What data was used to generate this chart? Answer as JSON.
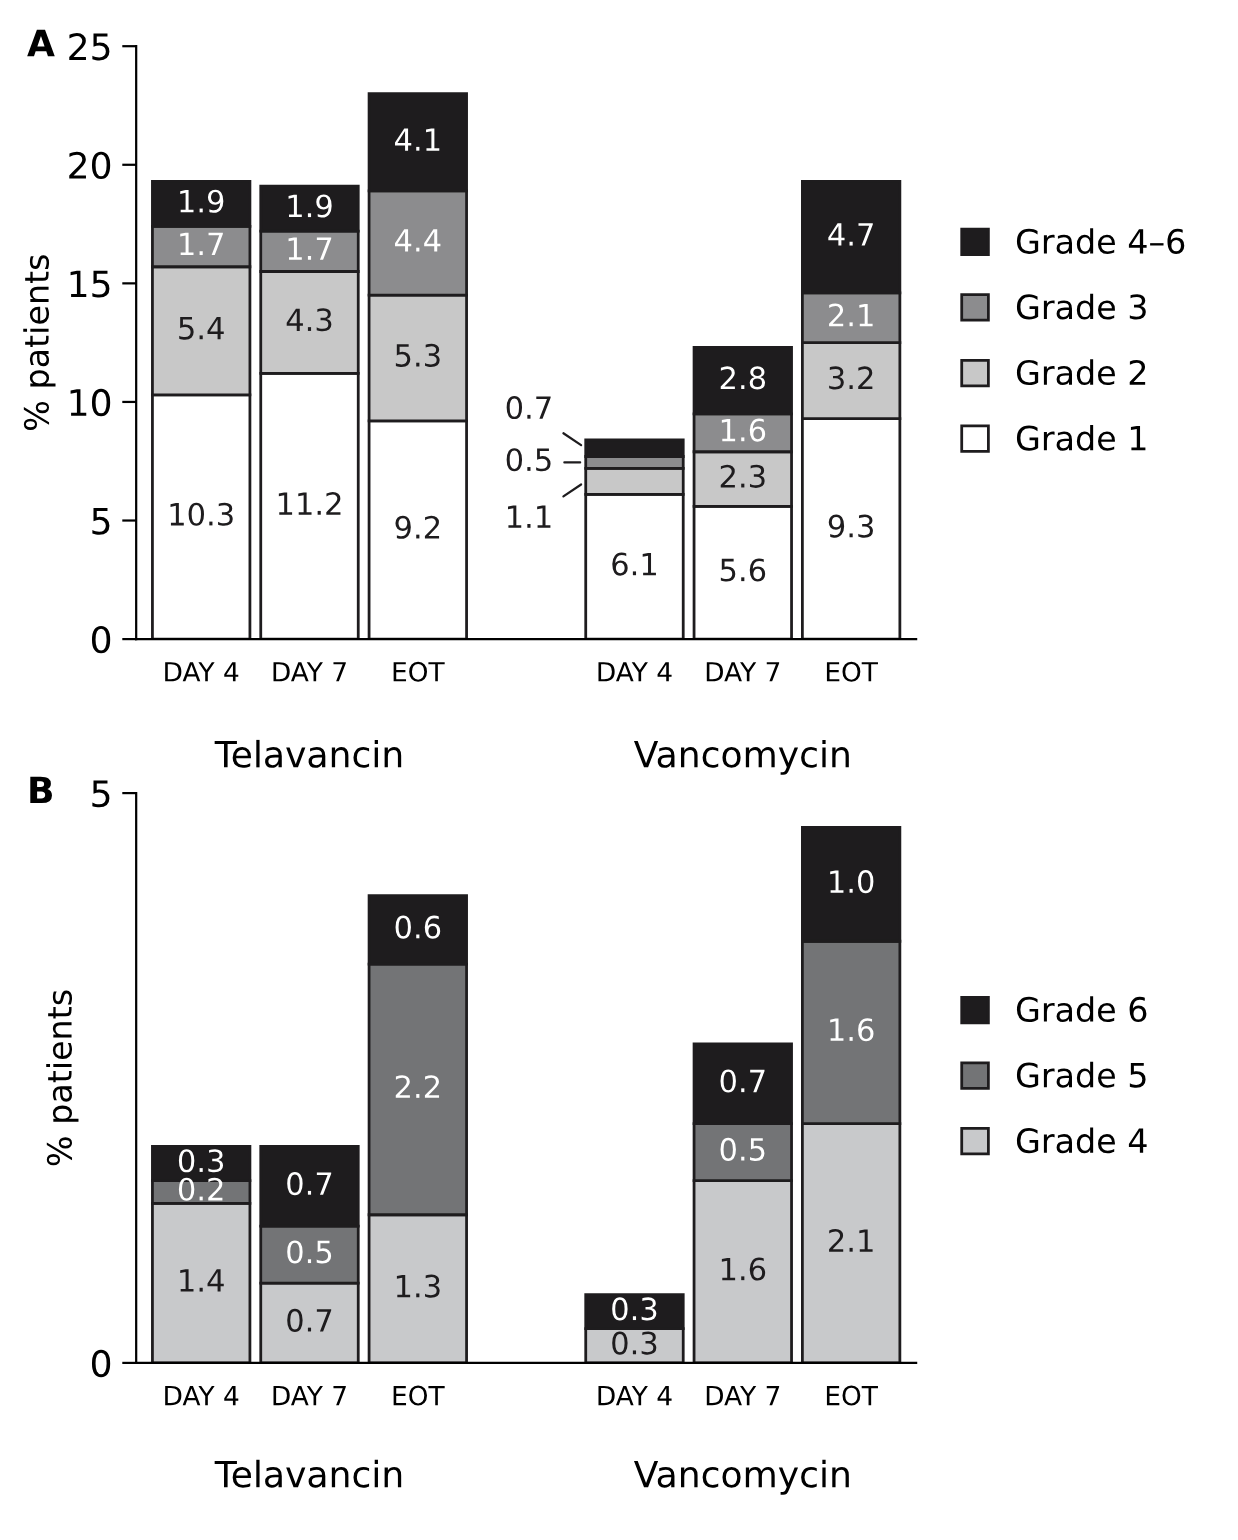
{
  "chart_data": [
    {
      "type": "bar",
      "title": "A",
      "ylabel": "% patients",
      "stacked": true,
      "data_labels": true,
      "legend": "right",
      "categories": [
        "DAY 4",
        "DAY 7",
        "EOT",
        null,
        "DAY 4",
        "DAY 7",
        "EOT"
      ],
      "series": [
        {
          "name": "Grade 1",
          "color": "#ffffff",
          "values": [
            10.3,
            11.2,
            9.2,
            null,
            6.1,
            5.6,
            9.3
          ]
        },
        {
          "name": "Grade 2",
          "color": "#c8c8c8",
          "values": [
            5.4,
            4.3,
            5.3,
            null,
            1.1,
            2.3,
            3.2
          ]
        },
        {
          "name": "Grade 3",
          "color": "#8c8c8e",
          "values": [
            1.7,
            1.7,
            4.4,
            null,
            0.5,
            1.6,
            2.1
          ]
        },
        {
          "name": "Grade 4–6",
          "color": "#1e1c1e",
          "values": [
            1.9,
            1.9,
            4.1,
            null,
            0.7,
            2.8,
            4.7
          ]
        }
      ],
      "ylim": [
        0,
        25
      ],
      "yticks": [
        0,
        5,
        10,
        15,
        20,
        25
      ],
      "annotations": [
        "Telavancin",
        "Vancomycin"
      ]
    },
    {
      "type": "bar",
      "title": "B",
      "ylabel": "% patients",
      "stacked": true,
      "data_labels": true,
      "legend": "right",
      "categories": [
        "DAY 4",
        "DAY 7",
        "EOT",
        null,
        "DAY 4",
        "DAY 7",
        "EOT"
      ],
      "series": [
        {
          "name": "Grade 4",
          "color": "#c8c9cb",
          "values": [
            1.4,
            0.7,
            1.3,
            null,
            0.3,
            1.6,
            2.1
          ]
        },
        {
          "name": "Grade 5",
          "color": "#737476",
          "values": [
            0.2,
            0.5,
            2.2,
            null,
            null,
            0.5,
            1.6
          ]
        },
        {
          "name": "Grade 6",
          "color": "#1e1c1e",
          "values": [
            0.3,
            0.7,
            0.6,
            null,
            0.3,
            0.7,
            1.0
          ],
          "value_labels": [
            "0.3",
            "0.7",
            "0.6",
            null,
            "0.3",
            "0.7",
            "1.0"
          ]
        }
      ],
      "ylim": [
        0,
        5
      ],
      "yticks": [
        0,
        5
      ],
      "annotations": [
        "Telavancin",
        "Vancomycin"
      ]
    }
  ]
}
